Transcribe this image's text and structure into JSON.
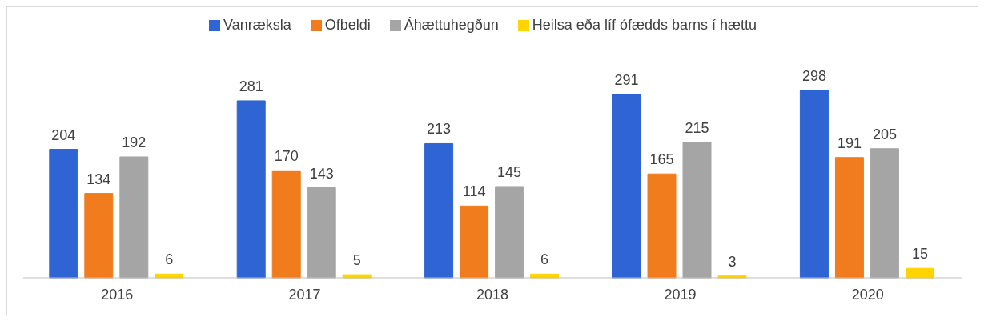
{
  "chart_data": {
    "type": "bar",
    "categories": [
      "2016",
      "2017",
      "2018",
      "2019",
      "2020"
    ],
    "series": [
      {
        "name": "Vanræksla",
        "color": "#2e64d4",
        "values": [
          204,
          281,
          213,
          291,
          298
        ]
      },
      {
        "name": "Ofbeldi",
        "color": "#f07c1e",
        "values": [
          134,
          170,
          114,
          165,
          191
        ]
      },
      {
        "name": "Áhættuhegðun",
        "color": "#a5a5a5",
        "values": [
          192,
          143,
          145,
          215,
          205
        ]
      },
      {
        "name": "Heilsa eða líf ófædds barns í hættu",
        "color": "#ffd400",
        "values": [
          6,
          5,
          6,
          3,
          15
        ]
      }
    ],
    "data_labels": true,
    "legend": "top",
    "grid": false
  }
}
